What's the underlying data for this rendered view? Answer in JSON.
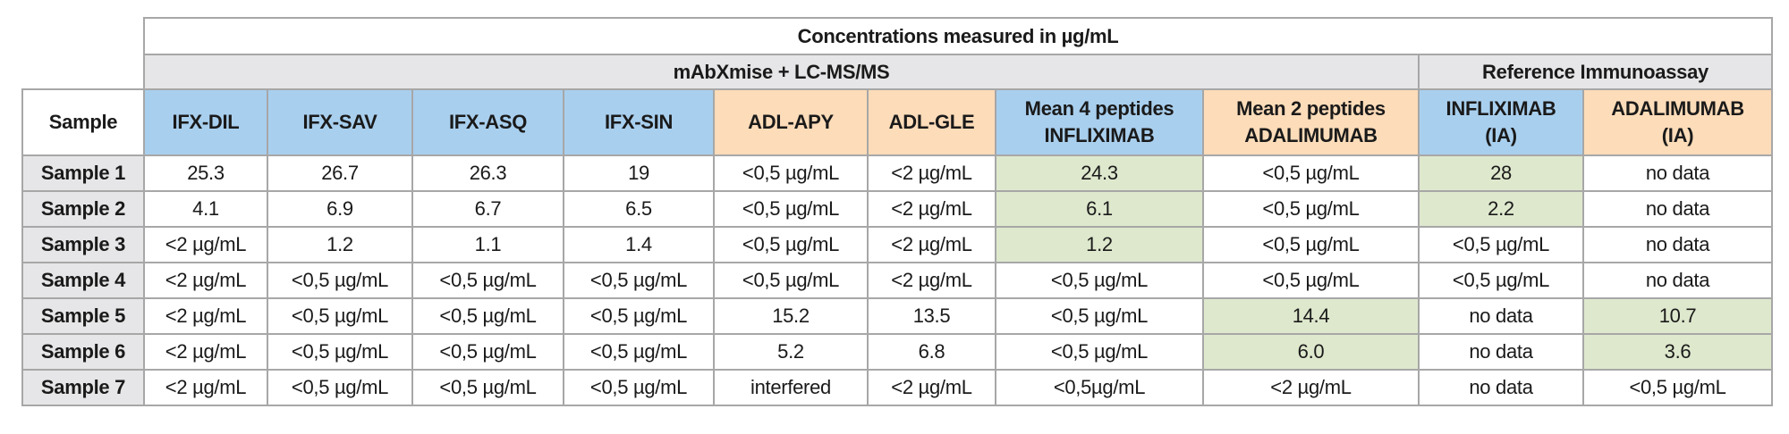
{
  "title": "Concentrations measured in µg/mL",
  "groups": [
    {
      "label": "mAbXmise + LC-MS/MS",
      "span": 8
    },
    {
      "label": "Reference Immunoassay",
      "span": 2
    }
  ],
  "colors": {
    "blue": "#a9cfee",
    "orange": "#fddcb9",
    "green_highlight": "#dee8cd",
    "gray": "#e6e6e8"
  },
  "columns": [
    {
      "label": "Sample",
      "color": "white"
    },
    {
      "label": "IFX-DIL",
      "color": "blue"
    },
    {
      "label": "IFX-SAV",
      "color": "blue"
    },
    {
      "label": "IFX-ASQ",
      "color": "blue"
    },
    {
      "label": "IFX-SIN",
      "color": "blue"
    },
    {
      "label": "ADL-APY",
      "color": "orange"
    },
    {
      "label": "ADL-GLE",
      "color": "orange"
    },
    {
      "label": "Mean 4 peptides",
      "label2": "INFLIXIMAB",
      "color": "blue"
    },
    {
      "label": "Mean 2 peptides",
      "label2": "ADALIMUMAB",
      "color": "orange"
    },
    {
      "label": "INFLIXIMAB",
      "label2": "(IA)",
      "color": "blue"
    },
    {
      "label": "ADALIMUMAB",
      "label2": "(IA)",
      "color": "orange"
    }
  ],
  "rows": [
    {
      "sample": "Sample 1",
      "cells": [
        "25.3",
        "26.7",
        "26.3",
        "19",
        "<0,5 µg/mL",
        "<2 µg/mL",
        "24.3",
        "<0,5 µg/mL",
        "28",
        "no data"
      ],
      "highlighted": [
        6,
        8
      ]
    },
    {
      "sample": "Sample 2",
      "cells": [
        "4.1",
        "6.9",
        "6.7",
        "6.5",
        "<0,5 µg/mL",
        "<2 µg/mL",
        "6.1",
        "<0,5 µg/mL",
        "2.2",
        "no data"
      ],
      "highlighted": [
        6,
        8
      ]
    },
    {
      "sample": "Sample 3",
      "cells": [
        "<2 µg/mL",
        "1.2",
        "1.1",
        "1.4",
        "<0,5 µg/mL",
        "<2 µg/mL",
        "1.2",
        "<0,5 µg/mL",
        "<0,5 µg/mL",
        "no data"
      ],
      "highlighted": [
        6
      ]
    },
    {
      "sample": "Sample 4",
      "cells": [
        "<2 µg/mL",
        "<0,5 µg/mL",
        "<0,5 µg/mL",
        "<0,5 µg/mL",
        "<0,5 µg/mL",
        "<2 µg/mL",
        "<0,5 µg/mL",
        "<0,5 µg/mL",
        "<0,5 µg/mL",
        "no data"
      ],
      "highlighted": []
    },
    {
      "sample": "Sample 5",
      "cells": [
        "<2 µg/mL",
        "<0,5 µg/mL",
        "<0,5 µg/mL",
        "<0,5 µg/mL",
        "15.2",
        "13.5",
        "<0,5 µg/mL",
        "14.4",
        "no data",
        "10.7"
      ],
      "highlighted": [
        7,
        9
      ]
    },
    {
      "sample": "Sample 6",
      "cells": [
        "<2 µg/mL",
        "<0,5 µg/mL",
        "<0,5 µg/mL",
        "<0,5 µg/mL",
        "5.2",
        "6.8",
        "<0,5 µg/mL",
        "6.0",
        "no data",
        "3.6"
      ],
      "highlighted": [
        7,
        9
      ]
    },
    {
      "sample": "Sample 7",
      "cells": [
        "<2 µg/mL",
        "<0,5 µg/mL",
        "<0,5 µg/mL",
        "<0,5 µg/mL",
        "interfered",
        "<2 µg/mL",
        "<0,5µg/mL",
        "<2 µg/mL",
        "no data",
        "<0,5 µg/mL"
      ],
      "highlighted": []
    }
  ]
}
